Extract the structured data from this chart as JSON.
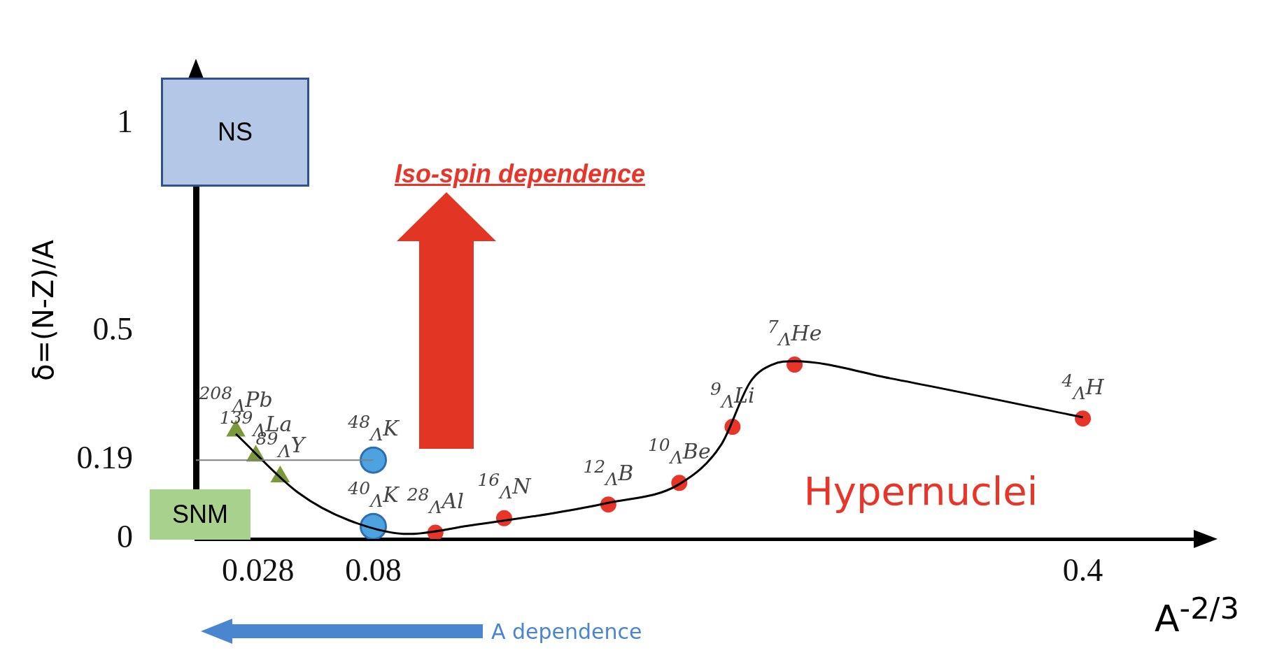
{
  "chart_data": {
    "type": "scatter",
    "xlabel": "A$^{-2/3}$",
    "ylabel": "δ=(N-Z)/A",
    "xlim": [
      0,
      0.45
    ],
    "ylim": [
      0,
      1.1
    ],
    "xticks": [
      0.028,
      0.08,
      0.4
    ],
    "yticks": [
      0,
      0.19,
      0.5,
      1
    ],
    "grid": false,
    "legend": false,
    "series": [
      {
        "type": "line",
        "color": "#808080",
        "x": [
          0,
          0.08
        ],
        "values": [
          0.19,
          0.19
        ],
        "marker": "none"
      },
      {
        "type": "line",
        "color": "#000000",
        "x": [
          0.018,
          0.046,
          0.069,
          0.096,
          0.123,
          0.161,
          0.186,
          0.218,
          0.237,
          0.25,
          0.26,
          0.27,
          0.313,
          0.4
        ],
        "values": [
          0.253,
          0.112,
          0.045,
          0.012,
          0.032,
          0.062,
          0.087,
          0.132,
          0.228,
          0.378,
          0.42,
          0.428,
          0.387,
          0.293
        ],
        "marker": "none"
      },
      {
        "color": "#7a9a3a",
        "x": [
          0.018,
          0.027,
          0.038
        ],
        "values": [
          0.26,
          0.2,
          0.15
        ],
        "marker": "triangle"
      },
      {
        "color": "#4da3e0",
        "x": [
          0.08,
          0.08
        ],
        "values": [
          0.19,
          0.03
        ],
        "marker": "circle"
      },
      {
        "color": "#e8352a",
        "x": [
          0.108,
          0.139,
          0.186,
          0.218,
          0.242,
          0.27,
          0.4
        ],
        "values": [
          0.015,
          0.05,
          0.083,
          0.135,
          0.27,
          0.42,
          0.29
        ],
        "marker": "circle"
      }
    ],
    "annotations": [
      "Iso-spin dependence",
      "Hypernuclei",
      "A dependence",
      "NS",
      "SNM",
      {
        "text": "$^{208}$$_{Λ}$Pb",
        "x": 0.018,
        "y": 0.26
      },
      {
        "text": "$^{139}$$_{Λ}$La",
        "x": 0.027,
        "y": 0.2
      },
      {
        "text": "$^{89}$$_{Λ}$Y",
        "x": 0.038,
        "y": 0.15
      },
      {
        "text": "$^{48}$$_{Λ}$K",
        "x": 0.08,
        "y": 0.19
      },
      {
        "text": "$^{40}$$_{Λ}$K",
        "x": 0.08,
        "y": 0.03
      },
      {
        "text": "$^{28}$$_{Λ}$Al",
        "x": 0.108,
        "y": 0.015
      },
      {
        "text": "$^{16}$$_{Λ}$N",
        "x": 0.139,
        "y": 0.05
      },
      {
        "text": "$^{12}$$_{Λ}$B",
        "x": 0.186,
        "y": 0.083
      },
      {
        "text": "$^{10}$$_{Λ}$Be",
        "x": 0.218,
        "y": 0.135
      },
      {
        "text": "$^{9}$$_{Λ}$Li",
        "x": 0.242,
        "y": 0.27
      },
      {
        "text": "$^{7}$$_{Λ}$He",
        "x": 0.27,
        "y": 0.42
      },
      {
        "text": "$^{4}$$_{Λ}$H",
        "x": 0.4,
        "y": 0.29
      }
    ]
  }
}
